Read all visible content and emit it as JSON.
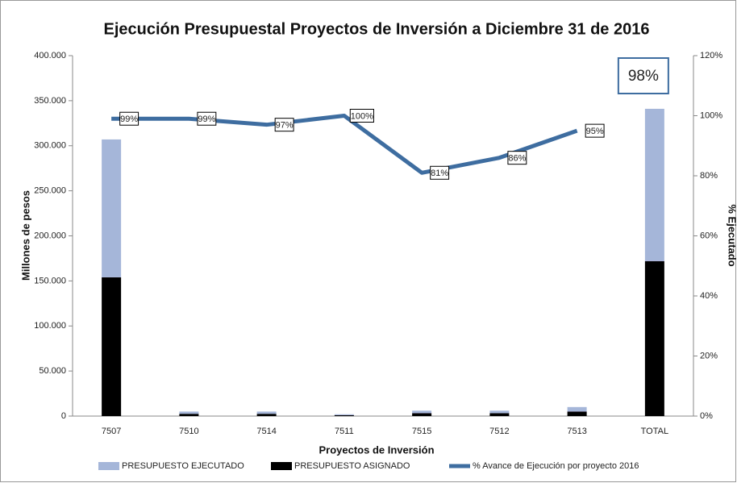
{
  "chart_data": {
    "type": "stacked-bar-line",
    "title": "Ejecución Presupuestal Proyectos de Inversión a Diciembre 31 de 2016",
    "x_label": "Proyectos de Inversión",
    "y_label": "Millones de pesos",
    "y2_label": "% Ejecutado",
    "categories": [
      "7507",
      "7510",
      "7514",
      "7511",
      "7515",
      "7512",
      "7513",
      "TOTAL"
    ],
    "series": [
      {
        "name": "PRESUPUESTO EJECUTADO",
        "color": "#a5b6d9",
        "values": [
          153000,
          2500,
          2500,
          1000,
          2700,
          2800,
          4900,
          169000
        ]
      },
      {
        "name": "PRESUPUESTO ASIGNADO",
        "color": "#1c1ccc",
        "gradient": [
          "#000000",
          "#1c1ccc",
          "#7a1fa0"
        ],
        "values": [
          154000,
          2500,
          2500,
          1000,
          3300,
          3200,
          5100,
          172000
        ]
      },
      {
        "name": "% Avance de Ejecución por proyecto 2016",
        "color": "#3e6da0",
        "axis": "y2",
        "values": [
          99,
          99,
          97,
          100,
          81,
          86,
          95,
          null
        ],
        "value_labels": [
          "99%",
          "99%",
          "97%",
          "100%",
          "81%",
          "86%",
          "95%",
          null
        ]
      }
    ],
    "annotation": "98%",
    "ylim": [
      0,
      400000
    ],
    "yticks": [
      0,
      {
        "value": 50000,
        "label": "50.000"
      },
      {
        "value": 100000,
        "label": "100.000"
      },
      {
        "value": 150000,
        "label": "150.000"
      },
      {
        "value": 200000,
        "label": "200.000"
      },
      {
        "value": 250000,
        "label": "250.000"
      },
      {
        "value": 300000,
        "label": "300.000"
      },
      {
        "value": 350000,
        "label": "350.000"
      },
      {
        "value": 400000,
        "label": "400.000"
      }
    ],
    "y2lim": [
      0,
      120
    ],
    "y2ticks": [
      {
        "value": 0,
        "label": "0%"
      },
      {
        "value": 20,
        "label": "20%"
      },
      {
        "value": 40,
        "label": "40%"
      },
      {
        "value": 60,
        "label": "60%"
      },
      {
        "value": 80,
        "label": "80%"
      },
      {
        "value": 100,
        "label": "100%"
      },
      {
        "value": 120,
        "label": "120%"
      }
    ],
    "legend": "bottom"
  }
}
